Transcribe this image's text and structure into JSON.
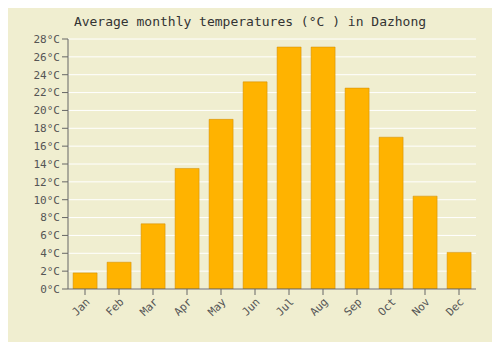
{
  "chart_data": {
    "type": "bar",
    "title": "Average monthly temperatures (°C ) in Dazhong",
    "categories": [
      "Jan",
      "Feb",
      "Mar",
      "Apr",
      "May",
      "Jun",
      "Jul",
      "Aug",
      "Sep",
      "Oct",
      "Nov",
      "Dec"
    ],
    "values": [
      1.8,
      3.0,
      7.3,
      13.5,
      19.0,
      23.2,
      27.1,
      27.1,
      22.5,
      17.0,
      10.4,
      4.1
    ],
    "color": "#FFB300",
    "ylim": [
      0,
      28
    ],
    "yticks": [
      {
        "value": 0,
        "label": "0°C"
      },
      {
        "value": 2,
        "label": "2°C"
      },
      {
        "value": 4,
        "label": "4°C"
      },
      {
        "value": 6,
        "label": "6°C"
      },
      {
        "value": 8,
        "label": "8°C"
      },
      {
        "value": 10,
        "label": "10°C"
      },
      {
        "value": 12,
        "label": "12°C"
      },
      {
        "value": 14,
        "label": "14°C"
      },
      {
        "value": 16,
        "label": "16°C"
      },
      {
        "value": 18,
        "label": "18°C"
      },
      {
        "value": 20,
        "label": "20°C"
      },
      {
        "value": 22,
        "label": "22°C"
      },
      {
        "value": 24,
        "label": "24°C"
      },
      {
        "value": 26,
        "label": "26°C"
      },
      {
        "value": 28,
        "label": "28°C"
      }
    ],
    "grid": true
  }
}
